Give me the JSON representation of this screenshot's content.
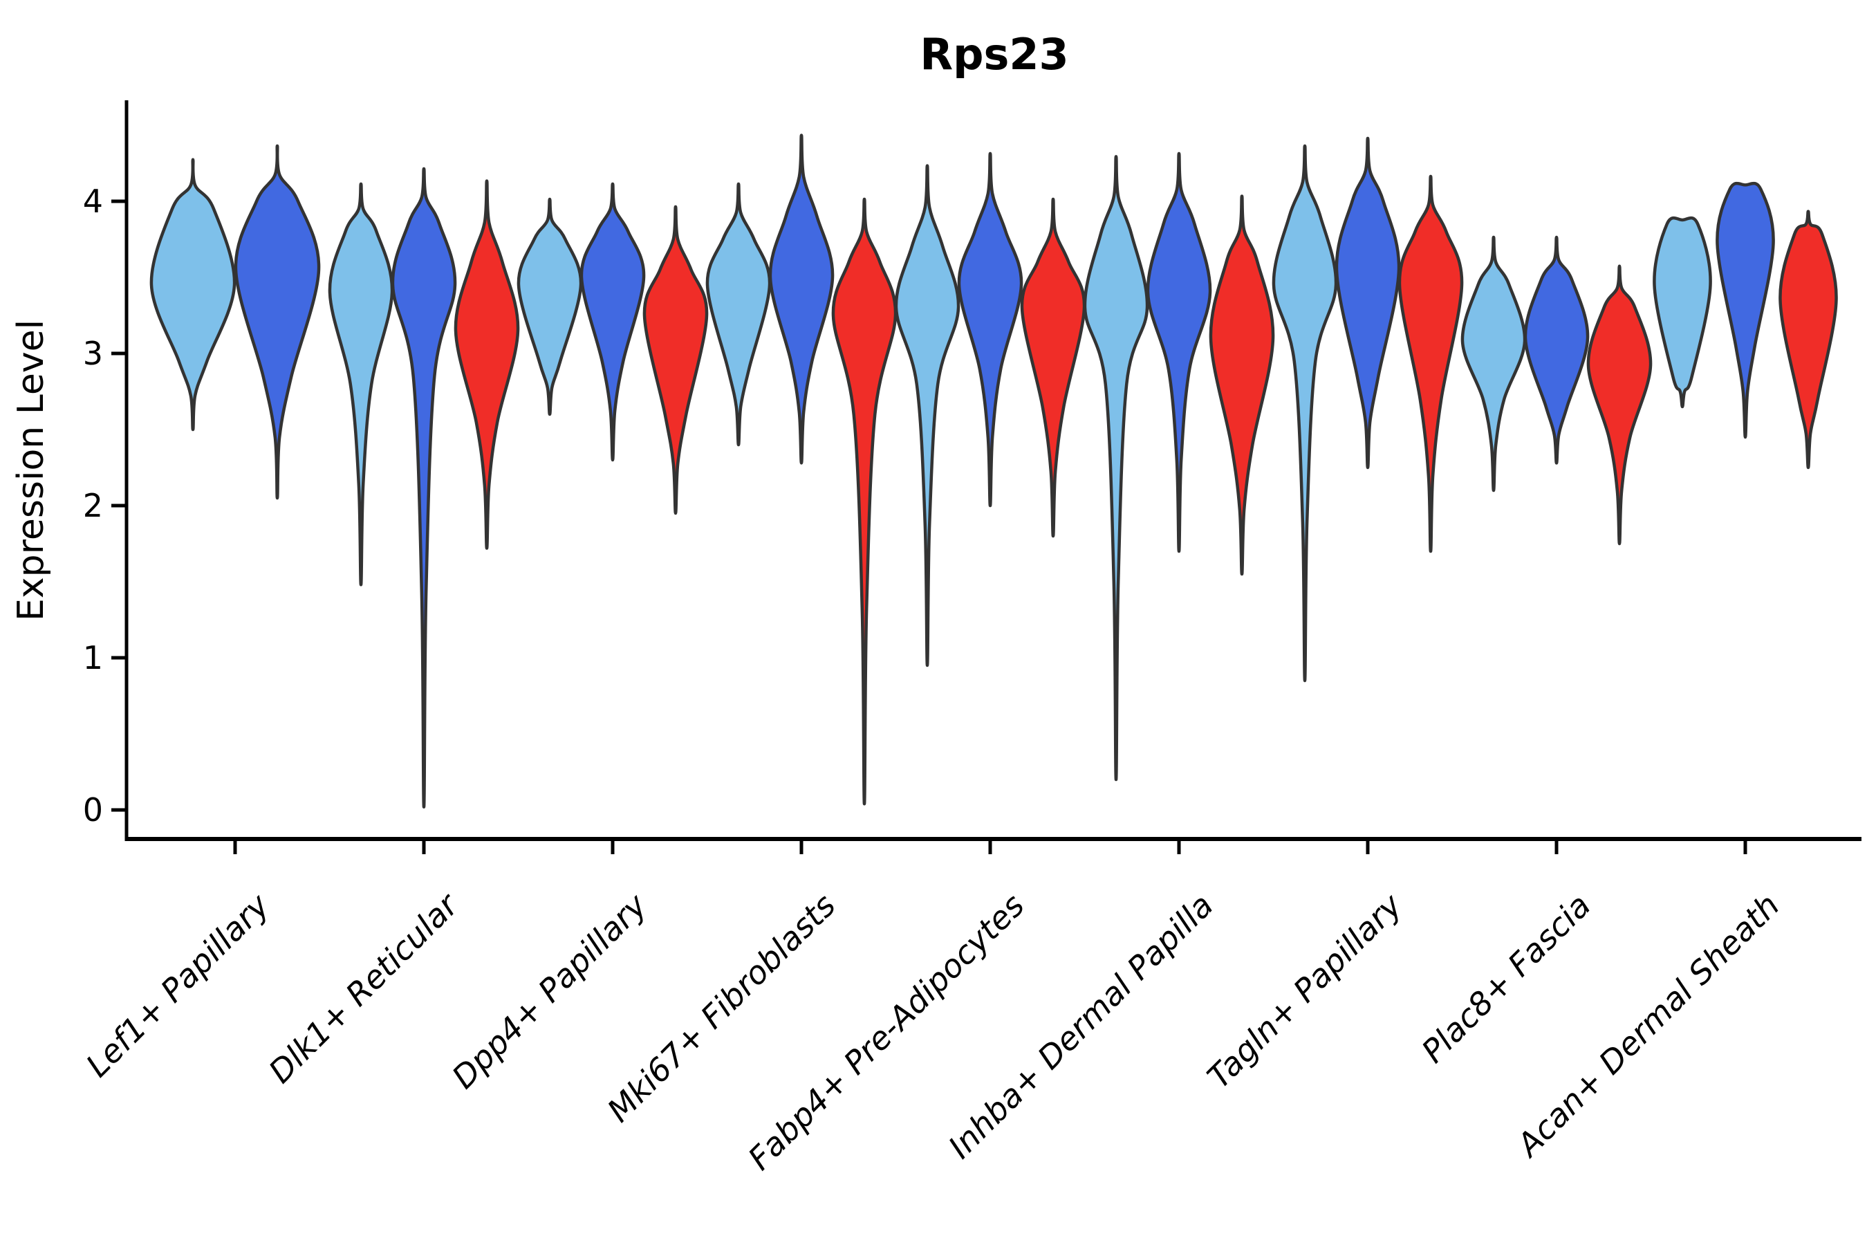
{
  "chart_data": {
    "type": "violin",
    "title": "Rps23",
    "xlabel": "",
    "ylabel": "Expression Level",
    "ylim": [
      0,
      4.6
    ],
    "yticks": [
      0,
      1,
      2,
      3,
      4
    ],
    "grid": false,
    "legend": "none",
    "background_color": "#ffffff",
    "axis_color": "#000000",
    "violin_outline_color": "#333333",
    "split_colors": [
      {
        "name": "light-blue",
        "color": "#7EC0EA"
      },
      {
        "name": "royal-blue",
        "color": "#4169E1"
      },
      {
        "name": "red",
        "color": "#F02D28"
      }
    ],
    "categories": [
      "Lef1+ Papillary",
      "Dlk1+ Reticular",
      "Dpp4+ Papillary",
      "Mki67+ Fibroblasts",
      "Fabp4+ Pre-Adipocytes",
      "Inhba+ Dermal Papilla",
      "Tagln+ Papillary",
      "Plac8+ Fascia",
      "Acan+ Dermal Sheath"
    ],
    "violins": [
      {
        "category": "Lef1+ Papillary",
        "split": 0,
        "max": 4.26,
        "upper": 3.95,
        "peak": 3.45,
        "lower": 2.95,
        "min": 2.5
      },
      {
        "category": "Lef1+ Papillary",
        "split": 1,
        "max": 4.35,
        "upper": 4.0,
        "peak": 3.55,
        "lower": 2.85,
        "min": 2.05
      },
      {
        "category": "Dlk1+ Reticular",
        "split": 0,
        "max": 4.1,
        "upper": 3.8,
        "peak": 3.4,
        "lower": 2.8,
        "min": 1.48
      },
      {
        "category": "Dlk1+ Reticular",
        "split": 1,
        "max": 4.2,
        "upper": 3.85,
        "peak": 3.45,
        "lower": 2.85,
        "min": 0.02
      },
      {
        "category": "Dlk1+ Reticular",
        "split": 2,
        "max": 4.12,
        "upper": 3.6,
        "peak": 3.15,
        "lower": 2.55,
        "min": 1.72
      },
      {
        "category": "Dpp4+ Papillary",
        "split": 0,
        "max": 4.0,
        "upper": 3.75,
        "peak": 3.45,
        "lower": 2.95,
        "min": 2.6
      },
      {
        "category": "Dpp4+ Papillary",
        "split": 1,
        "max": 4.1,
        "upper": 3.8,
        "peak": 3.5,
        "lower": 2.95,
        "min": 2.3
      },
      {
        "category": "Dpp4+ Papillary",
        "split": 2,
        "max": 3.95,
        "upper": 3.55,
        "peak": 3.25,
        "lower": 2.6,
        "min": 1.95
      },
      {
        "category": "Mki67+ Fibroblasts",
        "split": 0,
        "max": 4.1,
        "upper": 3.75,
        "peak": 3.45,
        "lower": 2.9,
        "min": 2.4
      },
      {
        "category": "Mki67+ Fibroblasts",
        "split": 1,
        "max": 4.42,
        "upper": 3.9,
        "peak": 3.5,
        "lower": 2.95,
        "min": 2.28
      },
      {
        "category": "Mki67+ Fibroblasts",
        "split": 2,
        "max": 4.0,
        "upper": 3.6,
        "peak": 3.25,
        "lower": 2.6,
        "min": 0.04
      },
      {
        "category": "Fabp4+ Pre-Adipocytes",
        "split": 0,
        "max": 4.22,
        "upper": 3.7,
        "peak": 3.3,
        "lower": 2.8,
        "min": 0.95
      },
      {
        "category": "Fabp4+ Pre-Adipocytes",
        "split": 1,
        "max": 4.3,
        "upper": 3.8,
        "peak": 3.45,
        "lower": 2.9,
        "min": 2.0
      },
      {
        "category": "Fabp4+ Pre-Adipocytes",
        "split": 2,
        "max": 4.0,
        "upper": 3.6,
        "peak": 3.3,
        "lower": 2.65,
        "min": 1.8
      },
      {
        "category": "Inhba+ Dermal Papilla",
        "split": 0,
        "max": 4.28,
        "upper": 3.78,
        "peak": 3.3,
        "lower": 2.8,
        "min": 0.2
      },
      {
        "category": "Inhba+ Dermal Papilla",
        "split": 1,
        "max": 4.3,
        "upper": 3.85,
        "peak": 3.4,
        "lower": 2.9,
        "min": 1.7
      },
      {
        "category": "Inhba+ Dermal Papilla",
        "split": 2,
        "max": 4.02,
        "upper": 3.6,
        "peak": 3.1,
        "lower": 2.4,
        "min": 1.55
      },
      {
        "category": "Tagln+ Papillary",
        "split": 0,
        "max": 4.35,
        "upper": 3.9,
        "peak": 3.45,
        "lower": 2.95,
        "min": 0.85
      },
      {
        "category": "Tagln+ Papillary",
        "split": 1,
        "max": 4.4,
        "upper": 4.0,
        "peak": 3.55,
        "lower": 2.85,
        "min": 2.25
      },
      {
        "category": "Tagln+ Papillary",
        "split": 2,
        "max": 4.15,
        "upper": 3.8,
        "peak": 3.45,
        "lower": 2.7,
        "min": 1.7
      },
      {
        "category": "Plac8+ Fascia",
        "split": 0,
        "max": 3.75,
        "upper": 3.45,
        "peak": 3.08,
        "lower": 2.7,
        "min": 2.1
      },
      {
        "category": "Plac8+ Fascia",
        "split": 1,
        "max": 3.75,
        "upper": 3.48,
        "peak": 3.1,
        "lower": 2.65,
        "min": 2.28
      },
      {
        "category": "Plac8+ Fascia",
        "split": 2,
        "max": 3.56,
        "upper": 3.3,
        "peak": 2.92,
        "lower": 2.45,
        "min": 1.75
      },
      {
        "category": "Acan+ Dermal Sheath",
        "split": 0,
        "max": 3.85,
        "upper": 3.65,
        "peak": 3.45,
        "lower": 2.85,
        "min": 2.65,
        "flat_top": true,
        "rel_width": 0.9
      },
      {
        "category": "Acan+ Dermal Sheath",
        "split": 1,
        "max": 4.08,
        "upper": 3.9,
        "peak": 3.72,
        "lower": 3.05,
        "min": 2.45,
        "flat_top": true,
        "rel_width": 0.9
      },
      {
        "category": "Acan+ Dermal Sheath",
        "split": 2,
        "max": 3.92,
        "upper": 3.78,
        "peak": 3.35,
        "lower": 2.7,
        "min": 2.25,
        "rel_width": 0.9
      }
    ]
  }
}
